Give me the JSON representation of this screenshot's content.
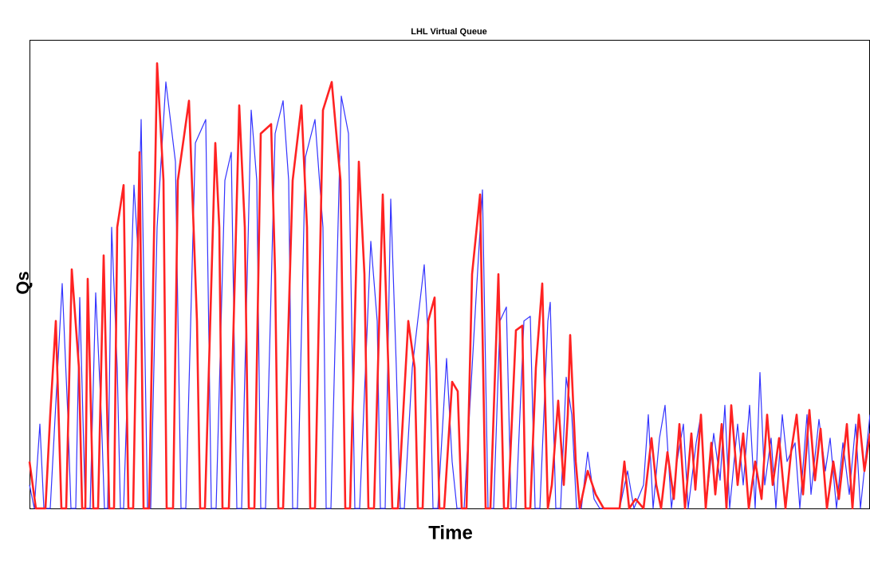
{
  "chart_data": {
    "type": "line",
    "title": "LHL Virtual Queue",
    "xlabel": "Time",
    "ylabel": "Qs",
    "xlim": [
      0,
      1054
    ],
    "ylim": [
      0,
      100
    ],
    "series": [
      {
        "color": "#3333ff",
        "x": [
          0,
          6,
          13,
          18,
          26,
          41,
          48,
          52,
          58,
          63,
          70,
          76,
          83,
          90,
          94,
          98,
          103,
          110,
          114,
          118,
          131,
          136,
          140,
          148,
          152,
          160,
          171,
          183,
          190,
          196,
          208,
          221,
          228,
          234,
          245,
          253,
          260,
          266,
          278,
          285,
          290,
          296,
          308,
          318,
          325,
          330,
          336,
          346,
          358,
          368,
          372,
          378,
          391,
          400,
          408,
          414,
          428,
          436,
          440,
          446,
          453,
          460,
          465,
          470,
          480,
          495,
          502,
          506,
          512,
          523,
          530,
          536,
          545,
          560,
          568,
          575,
          582,
          590,
          598,
          604,
          610,
          620,
          628,
          634,
          640,
          650,
          653,
          660,
          666,
          673,
          680,
          686,
          692,
          700,
          708,
          715,
          725,
          740,
          750,
          758,
          770,
          776,
          782,
          790,
          797,
          805,
          812,
          820,
          826,
          836,
          842,
          848,
          858,
          866,
          872,
          878,
          888,
          895,
          903,
          910,
          916,
          922,
          930,
          936,
          944,
          950,
          960,
          966,
          975,
          980,
          990,
          998,
          1004,
          1012,
          1020,
          1028,
          1036,
          1042,
          1054
        ],
        "values": [
          5,
          0,
          18,
          0,
          0,
          48,
          20,
          0,
          0,
          45,
          0,
          0,
          46,
          20,
          0,
          0,
          60,
          30,
          0,
          0,
          69,
          55,
          83,
          0,
          0,
          60,
          91,
          74,
          0,
          0,
          78,
          83,
          0,
          0,
          70,
          76,
          0,
          0,
          85,
          70,
          0,
          0,
          80,
          87,
          70,
          0,
          0,
          75,
          83,
          60,
          0,
          0,
          88,
          80,
          0,
          0,
          57,
          40,
          0,
          0,
          66,
          30,
          0,
          0,
          30,
          52,
          30,
          0,
          0,
          32,
          10,
          0,
          0,
          45,
          68,
          0,
          0,
          40,
          43,
          0,
          0,
          40,
          41,
          0,
          0,
          40,
          44,
          0,
          0,
          28,
          20,
          0,
          0,
          12,
          2,
          0,
          0,
          0,
          8,
          0,
          5,
          20,
          0,
          15,
          22,
          0,
          10,
          18,
          0,
          14,
          20,
          0,
          16,
          6,
          22,
          0,
          18,
          5,
          22,
          0,
          29,
          5,
          15,
          0,
          20,
          10,
          14,
          0,
          20,
          3,
          19,
          8,
          15,
          0,
          14,
          3,
          18,
          0,
          20
        ]
      },
      {
        "color": "#ff2222",
        "x": [
          0,
          8,
          20,
          26,
          33,
          40,
          46,
          53,
          62,
          66,
          70,
          73,
          80,
          86,
          93,
          100,
          106,
          110,
          118,
          124,
          130,
          138,
          143,
          150,
          160,
          168,
          172,
          180,
          186,
          200,
          210,
          214,
          220,
          233,
          238,
          242,
          250,
          263,
          270,
          275,
          282,
          290,
          303,
          308,
          312,
          318,
          330,
          341,
          348,
          352,
          358,
          368,
          379,
          390,
          396,
          402,
          413,
          420,
          425,
          432,
          443,
          450,
          455,
          462,
          475,
          483,
          487,
          493,
          500,
          508,
          514,
          520,
          530,
          537,
          542,
          548,
          555,
          565,
          572,
          578,
          588,
          595,
          600,
          610,
          618,
          622,
          628,
          635,
          643,
          650,
          655,
          663,
          670,
          675,
          678,
          685,
          690,
          700,
          710,
          720,
          740,
          746,
          752,
          760,
          770,
          780,
          786,
          792,
          800,
          808,
          815,
          822,
          830,
          835,
          842,
          848,
          855,
          860,
          868,
          874,
          880,
          888,
          895,
          902,
          910,
          918,
          925,
          932,
          940,
          948,
          955,
          962,
          970,
          978,
          985,
          992,
          1000,
          1008,
          1015,
          1025,
          1032,
          1040,
          1047,
          1054
        ],
        "values": [
          10,
          0,
          0,
          20,
          40,
          0,
          0,
          51,
          30,
          0,
          0,
          49,
          0,
          0,
          54,
          0,
          0,
          60,
          69,
          0,
          0,
          76,
          0,
          0,
          95,
          70,
          0,
          0,
          70,
          87,
          40,
          0,
          0,
          78,
          60,
          0,
          0,
          86,
          60,
          0,
          0,
          80,
          82,
          50,
          0,
          0,
          70,
          86,
          60,
          0,
          0,
          85,
          91,
          70,
          0,
          0,
          74,
          50,
          0,
          0,
          67,
          30,
          0,
          0,
          40,
          30,
          0,
          0,
          40,
          45,
          0,
          0,
          27,
          25,
          0,
          0,
          50,
          67,
          0,
          0,
          50,
          0,
          0,
          38,
          39,
          0,
          0,
          30,
          48,
          0,
          5,
          23,
          5,
          20,
          37,
          10,
          0,
          8,
          3,
          0,
          0,
          10,
          0,
          2,
          0,
          15,
          5,
          0,
          12,
          2,
          18,
          0,
          16,
          4,
          20,
          0,
          14,
          3,
          18,
          0,
          22,
          5,
          16,
          0,
          10,
          2,
          20,
          5,
          15,
          0,
          12,
          20,
          3,
          21,
          6,
          17,
          0,
          10,
          2,
          18,
          0,
          20,
          8,
          16
        ]
      }
    ]
  }
}
